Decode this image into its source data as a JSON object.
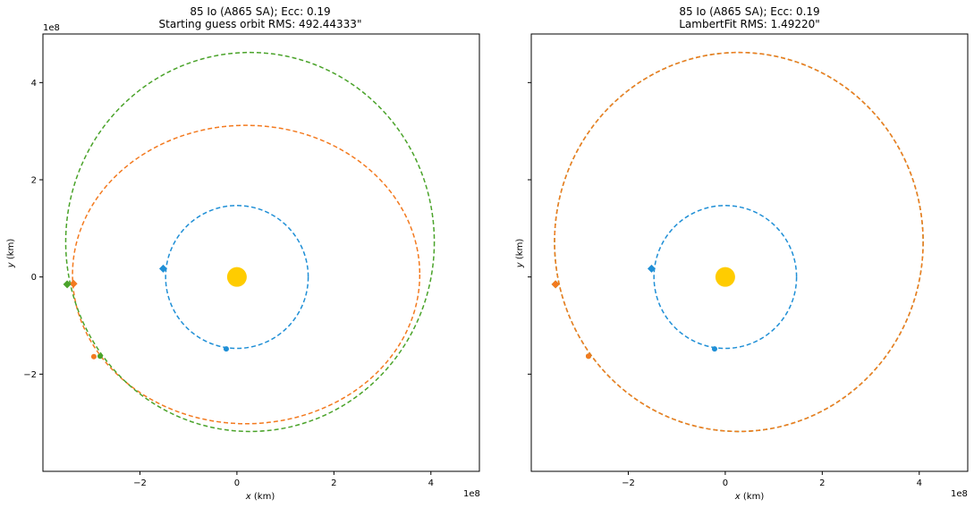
{
  "chart_data": [
    {
      "type": "scatter",
      "title": "85 Io (A865 SA); Ecc: 0.19",
      "subtitle": "Starting guess orbit RMS: 492.44333\"",
      "xlabel": "x (km)",
      "ylabel": "y (km)",
      "x_exponent": "1e8",
      "y_exponent": "1e8",
      "xlim": [
        -4.0,
        5.0
      ],
      "ylim": [
        -4.0,
        5.0
      ],
      "x_ticks": [
        -2,
        0,
        2,
        4
      ],
      "y_ticks": [
        -2,
        0,
        2,
        4
      ],
      "x_tick_labels": [
        "−2",
        "0",
        "2",
        "4"
      ],
      "y_tick_labels": [
        "−2",
        "0",
        "2",
        "4"
      ],
      "sun": {
        "x": 0,
        "y": 0,
        "color": "#ffcc00"
      },
      "orbits": [
        {
          "cx": 0.0,
          "cy": 0.0,
          "rx": 1.47,
          "ry": 1.47,
          "color": "#1f8fd6"
        },
        {
          "cx": 0.19,
          "cy": 0.05,
          "rx": 3.58,
          "ry": 3.07,
          "color": "#f37a1f"
        },
        {
          "cx": 0.27,
          "cy": 0.72,
          "rx": 3.8,
          "ry": 3.9,
          "color": "#4aa32a"
        }
      ],
      "markers": [
        {
          "x": -1.52,
          "y": 0.17,
          "shape": "diamond",
          "color": "#1f8fd6"
        },
        {
          "x": -0.22,
          "y": -1.48,
          "shape": "circle",
          "color": "#1f8fd6"
        },
        {
          "x": -3.37,
          "y": -0.14,
          "shape": "diamond",
          "color": "#f37a1f"
        },
        {
          "x": -2.95,
          "y": -1.64,
          "shape": "circle",
          "color": "#f37a1f"
        },
        {
          "x": -3.5,
          "y": -0.15,
          "shape": "diamond",
          "color": "#4aa32a"
        },
        {
          "x": -2.82,
          "y": -1.63,
          "shape": "circle",
          "color": "#4aa32a"
        }
      ]
    },
    {
      "type": "scatter",
      "title": "85 Io (A865 SA); Ecc: 0.19",
      "subtitle": "LambertFit RMS: 1.49220\"",
      "xlabel": "x (km)",
      "ylabel": "y (km)",
      "x_exponent": "1e8",
      "xlim": [
        -4.0,
        5.0
      ],
      "ylim": [
        -4.0,
        5.0
      ],
      "x_ticks": [
        -2,
        0,
        2,
        4
      ],
      "y_ticks": [
        -2,
        0,
        2,
        4
      ],
      "x_tick_labels": [
        "−2",
        "0",
        "2",
        "4"
      ],
      "sun": {
        "x": 0,
        "y": 0,
        "color": "#ffcc00"
      },
      "orbits": [
        {
          "cx": 0.0,
          "cy": 0.0,
          "rx": 1.47,
          "ry": 1.47,
          "color": "#1f8fd6"
        },
        {
          "cx": 0.28,
          "cy": 0.72,
          "rx": 3.8,
          "ry": 3.9,
          "color": "#4aa32a"
        },
        {
          "cx": 0.28,
          "cy": 0.72,
          "rx": 3.8,
          "ry": 3.9,
          "color": "#f37a1f"
        }
      ],
      "markers": [
        {
          "x": -1.52,
          "y": 0.17,
          "shape": "diamond",
          "color": "#1f8fd6"
        },
        {
          "x": -0.22,
          "y": -1.48,
          "shape": "circle",
          "color": "#1f8fd6"
        },
        {
          "x": -3.5,
          "y": -0.15,
          "shape": "diamond",
          "color": "#4aa32a"
        },
        {
          "x": -2.82,
          "y": -1.63,
          "shape": "circle",
          "color": "#4aa32a"
        },
        {
          "x": -3.5,
          "y": -0.15,
          "shape": "diamond",
          "color": "#f37a1f"
        },
        {
          "x": -2.82,
          "y": -1.63,
          "shape": "circle",
          "color": "#f37a1f"
        }
      ]
    }
  ]
}
